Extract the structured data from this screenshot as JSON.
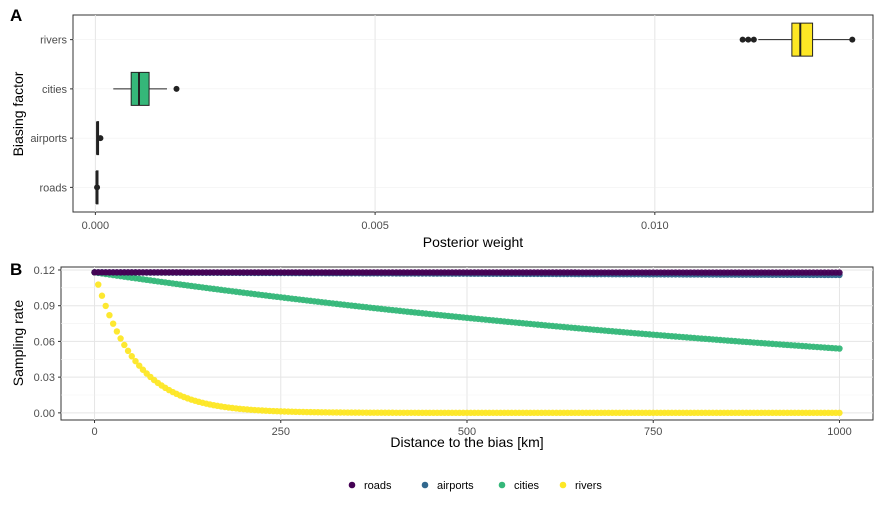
{
  "panel_a": {
    "letter": "A",
    "ylabel": "Biasing factor",
    "xlabel": "Posterior weight",
    "categories": [
      "roads",
      "airports",
      "cities",
      "rivers"
    ],
    "xticks": [
      "0.000",
      "0.005",
      "0.010"
    ],
    "xtick_values": [
      0.0,
      0.005,
      0.01
    ],
    "xlim": [
      -0.0004,
      0.0139
    ],
    "colors": {
      "rivers": "#fde725",
      "cities": "#35b779",
      "airports": "#000000",
      "roads": "#000000"
    }
  },
  "panel_b": {
    "letter": "B",
    "ylabel": "Sampling rate",
    "xlabel": "Distance to the bias [km]",
    "xticks": [
      "0",
      "250",
      "500",
      "750",
      "1000"
    ],
    "xtick_values": [
      0,
      250,
      500,
      750,
      1000
    ],
    "yticks": [
      "0.00",
      "0.03",
      "0.06",
      "0.09",
      "0.12"
    ],
    "ytick_values": [
      0.0,
      0.03,
      0.06,
      0.09,
      0.12
    ],
    "xlim": [
      -45,
      1045
    ],
    "ylim": [
      -0.006,
      0.1225
    ]
  },
  "legend": {
    "items": [
      {
        "label": "roads",
        "color": "#440154"
      },
      {
        "label": "airports",
        "color": "#31688e"
      },
      {
        "label": "cities",
        "color": "#35b779"
      },
      {
        "label": "rivers",
        "color": "#fde725"
      }
    ]
  },
  "chart_data": [
    {
      "type": "box",
      "title": "",
      "xlabel": "Posterior weight",
      "ylabel": "Biasing factor",
      "categories": [
        "roads",
        "airports",
        "cities",
        "rivers"
      ],
      "boxes": [
        {
          "category": "roads",
          "min": 2e-05,
          "q1": 2e-05,
          "median": 2e-05,
          "q3": 3e-05,
          "max": 3e-05,
          "outliers": [
            3e-05
          ]
        },
        {
          "category": "airports",
          "min": 3e-05,
          "q1": 3e-05,
          "median": 3e-05,
          "q3": 4e-05,
          "max": 4e-05,
          "outliers": [
            9e-05
          ]
        },
        {
          "category": "cities",
          "min": 0.00032,
          "q1": 0.00064,
          "median": 0.00078,
          "q3": 0.00096,
          "max": 0.00128,
          "outliers": [
            0.00145
          ]
        },
        {
          "category": "rivers",
          "min": 0.01185,
          "q1": 0.01245,
          "median": 0.0126,
          "q3": 0.01282,
          "max": 0.01352,
          "outliers": [
            0.01157,
            0.01167,
            0.01177,
            0.01353
          ]
        }
      ],
      "xlim": [
        -0.0004,
        0.0139
      ]
    },
    {
      "type": "scatter",
      "title": "",
      "xlabel": "Distance to the bias [km]",
      "ylabel": "Sampling rate",
      "xlim": [
        0,
        1000
      ],
      "ylim": [
        0.0,
        0.12
      ],
      "series": [
        {
          "name": "roads",
          "model": "exponential",
          "y0": 0.118,
          "y1000": 0.1178
        },
        {
          "name": "airports",
          "model": "exponential",
          "y0": 0.118,
          "y1000": 0.1158
        },
        {
          "name": "cities",
          "model": "exponential",
          "y0": 0.118,
          "y1000": 0.054
        },
        {
          "name": "rivers",
          "model": "exponential",
          "y0": 0.118,
          "decay_km": 55
        }
      ]
    }
  ]
}
